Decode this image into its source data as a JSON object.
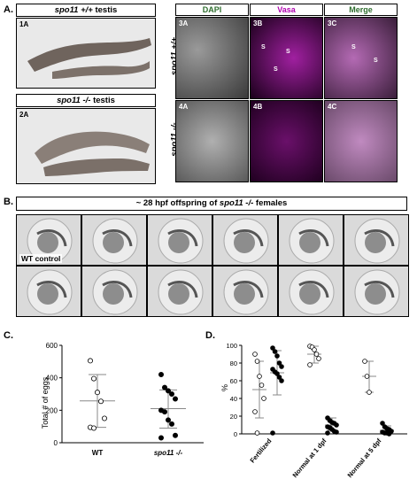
{
  "panel_a": {
    "letter": "A.",
    "wt_title_prefix": "spo11 +/+",
    "wt_title_suffix": " testis",
    "mut_title_prefix": "spo11 -/-",
    "mut_title_suffix": " testis",
    "sub_1a": "1A",
    "sub_2a": "2A",
    "channels": [
      "DAPI",
      "Vasa",
      "Merge"
    ],
    "row_labels": [
      "spo11 +/+",
      "spo11 -/-"
    ],
    "tiles_row1": [
      "3A",
      "3B",
      "3C"
    ],
    "tiles_row2": [
      "4A",
      "4B",
      "4C"
    ],
    "s_mark": "S"
  },
  "panel_b": {
    "letter": "B.",
    "title_prefix": "~ 28 hpf offspring of ",
    "title_italic": "spo11 -/-",
    "title_suffix": " females",
    "wt_control": "WT control"
  },
  "panel_c": {
    "letter": "C.",
    "chart_data": {
      "type": "scatter",
      "ylabel": "Total # of eggs",
      "categories": [
        "WT",
        "spo11 -/-"
      ],
      "ylim": [
        0,
        600
      ],
      "yticks": [
        0,
        200,
        400,
        600
      ],
      "series": [
        {
          "name": "WT",
          "marker": "open-circle",
          "values": [
            505,
            395,
            310,
            255,
            150,
            95,
            90
          ],
          "mean": 258,
          "sd_low": 95,
          "sd_high": 420
        },
        {
          "name": "spo11 -/-",
          "marker": "filled-circle",
          "values": [
            420,
            340,
            320,
            300,
            270,
            200,
            190,
            140,
            115,
            45,
            30
          ],
          "mean": 210,
          "sd_low": 90,
          "sd_high": 325
        }
      ]
    }
  },
  "panel_d": {
    "letter": "D.",
    "chart_data": {
      "type": "scatter",
      "ylabel": "%",
      "categories": [
        "Fertilized",
        "Normal at 1 dpf",
        "Normal at 5 dpf"
      ],
      "ylim": [
        0,
        100
      ],
      "yticks": [
        0,
        20,
        40,
        60,
        80,
        100
      ],
      "series": [
        {
          "group": "Fertilized",
          "marker": "open-circle",
          "values": [
            90,
            82,
            65,
            55,
            40,
            25,
            1
          ],
          "mean": 50,
          "sd_low": 18,
          "sd_high": 82
        },
        {
          "group": "Fertilized",
          "marker": "filled-circle",
          "values": [
            97,
            93,
            88,
            80,
            76,
            73,
            70,
            68,
            64,
            60,
            1
          ],
          "mean": 69,
          "sd_low": 44,
          "sd_high": 94
        },
        {
          "group": "Normal at 1 dpf",
          "marker": "open-circle",
          "values": [
            99,
            98,
            95,
            90,
            85,
            78
          ],
          "mean": 90,
          "sd_low": 80,
          "sd_high": 99
        },
        {
          "group": "Normal at 1 dpf",
          "marker": "filled-circle",
          "values": [
            18,
            15,
            13,
            12,
            10,
            8,
            7,
            5,
            3,
            2,
            1
          ],
          "mean": 10,
          "sd_low": 4,
          "sd_high": 18
        },
        {
          "group": "Normal at 5 dpf",
          "marker": "open-circle",
          "values": [
            82,
            65,
            47
          ],
          "mean": 65,
          "sd_low": 47,
          "sd_high": 82
        },
        {
          "group": "Normal at 5 dpf",
          "marker": "filled-circle",
          "values": [
            12,
            8,
            6,
            5,
            3,
            2,
            1,
            1,
            0
          ],
          "mean": 4,
          "sd_low": 0,
          "sd_high": 9
        }
      ]
    }
  }
}
